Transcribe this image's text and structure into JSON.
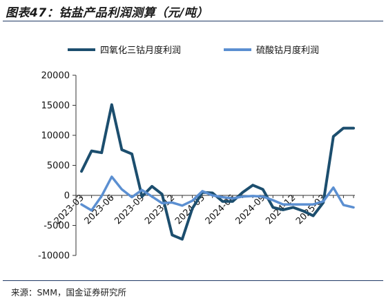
{
  "title": "图表47：钴盐产品利润测算（元/吨）",
  "source": "来源：SMM，国金证券研究所",
  "colors": {
    "series1": "#1c4e6e",
    "series2": "#5b8fd1",
    "rule": "#1f3864"
  },
  "chart_data": {
    "type": "line",
    "ylim": [
      -10000,
      20000
    ],
    "yticks": [
      "20000",
      "15000",
      "10000",
      "5000",
      "0",
      "-5000",
      "-10000"
    ],
    "ytick_values": [
      20000,
      15000,
      10000,
      5000,
      0,
      -5000,
      -10000
    ],
    "xtick_labels": [
      "2023-03",
      "2023-06",
      "2023-09",
      "2023-12",
      "2024-03",
      "2024-06",
      "2024-09",
      "2024-12",
      "2025-03"
    ],
    "xtick_index": [
      0,
      3,
      6,
      9,
      12,
      15,
      18,
      21,
      24
    ],
    "x_count": 28,
    "legend_position": "top",
    "grid": false,
    "series": [
      {
        "name": "四氧化三钴月度利润",
        "color": "#1c4e6e",
        "values": [
          4000,
          7400,
          7100,
          15100,
          7600,
          6900,
          -200,
          1500,
          200,
          -6600,
          -7300,
          -2200,
          500,
          400,
          -1000,
          -1000,
          500,
          1700,
          1000,
          -2000,
          -2400,
          -2000,
          -2600,
          -3400,
          -1200,
          9800,
          11200,
          11200
        ]
      },
      {
        "name": "硫酸钴月度利润",
        "color": "#5b8fd1",
        "values": [
          -1500,
          -2500,
          -100,
          3100,
          1000,
          -300,
          900,
          -200,
          -1300,
          -1200,
          -1700,
          -900,
          700,
          0,
          -300,
          -500,
          -200,
          -100,
          -200,
          -800,
          -1500,
          -1500,
          -1500,
          -1500,
          -1000,
          1300,
          -1600,
          -2000
        ]
      }
    ]
  }
}
